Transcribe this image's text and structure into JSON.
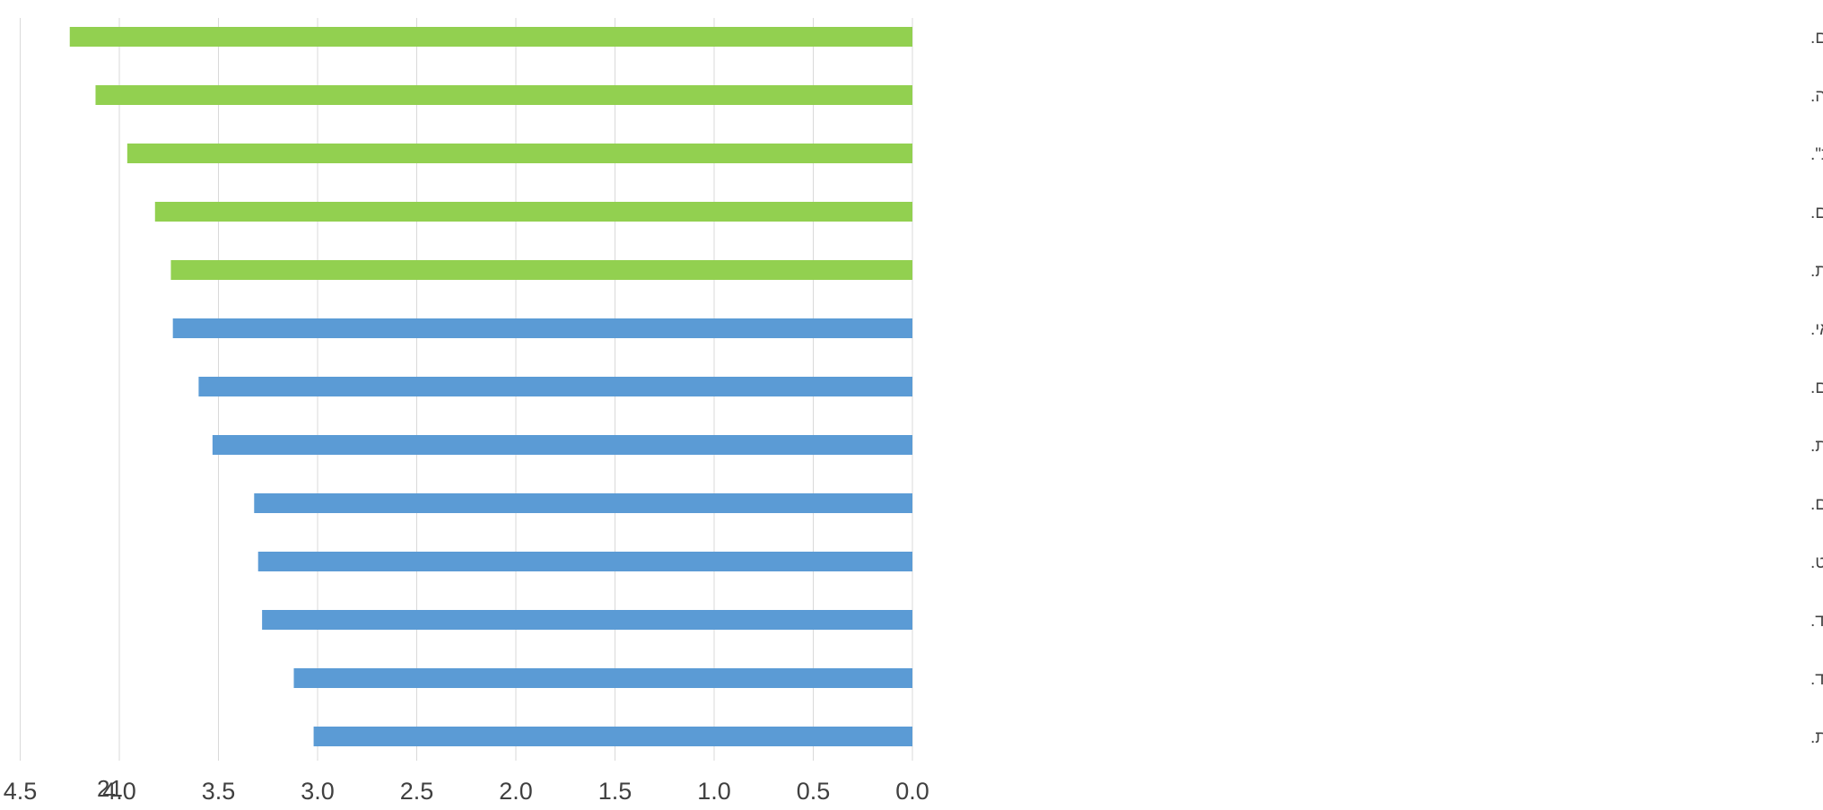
{
  "page_number": "21",
  "chart_data": {
    "type": "bar",
    "orientation": "horizontal",
    "x_axis_reversed": true,
    "xlim": [
      0,
      4.5
    ],
    "xticks": [
      "0.0",
      "0.5",
      "1.0",
      "1.5",
      "2.0",
      "2.5",
      "3.0",
      "3.5",
      "4.0",
      "4.5"
    ],
    "grid": true,
    "legend": "none",
    "colors": {
      "blue": "#5b9bd5",
      "green": "#92d050",
      "grid": "#d9d9d9",
      "text": "#404040"
    },
    "categories": [
      "מענקים לעבודות סטודנטים לחקלאות ולבנים חוזרים או לחדשים.",
      "מענקי השלמת שכר לחקלאים חדשים בתקופת ההכשרה.",
      "העמדת פרויקטור לצורך הליווי וההטמעה, ואיחוד כל התמריצים והמידע תחת \"מטריה אחת\".",
      "חונכות – אימוץ חקלאים חדשים על ידי חקלאים ותיקים.",
      "מסלול משולב של עבודה חקלאית ואקדמיה בה יינתנו מלגות עבוד לימודים אקדמאיים המותנות בעבודה חקלאית בחופשות.",
      "תוכניות עתידים/מצויינים/ניהול משק חקלאי.",
      "תוכניות להכשרת חקלאים בקיבוצים.",
      "מעטפת תומכת בחקלאי חדש לרבות בסוגיות ניהול הנחלה והעברת זכויות בין דורית.",
      "הסתייעות במדריכים חקלאיים לפי ענפי החקלאות הרלוונטיים.",
      "מנטורינג עבור משקי מודל במסגרת תוכנית °360 בחקלאות בשיתוף פעולה עם הג'וינט.",
      "תוכניות להתנדבות,שנת שירות,שירות צבאי,מכינה ועוד.",
      "גיבוש קבוצת חקלאים מעוררי השראה שיעסקו בגיבוש אסטרטגיה לחקלאות, מנהיגות,חיבורים ושיתופי פעולה ועוד.",
      "ליווי חקלאים חדשים על ידי גורמי מטה ומחוזות במשרד החקלאות."
    ],
    "values": [
      4.25,
      4.12,
      3.96,
      3.82,
      3.74,
      3.73,
      3.6,
      3.53,
      3.32,
      3.3,
      3.28,
      3.12,
      3.02
    ],
    "bar_colors": [
      "green",
      "green",
      "green",
      "green",
      "green",
      "blue",
      "blue",
      "blue",
      "blue",
      "blue",
      "blue",
      "blue",
      "blue"
    ]
  }
}
